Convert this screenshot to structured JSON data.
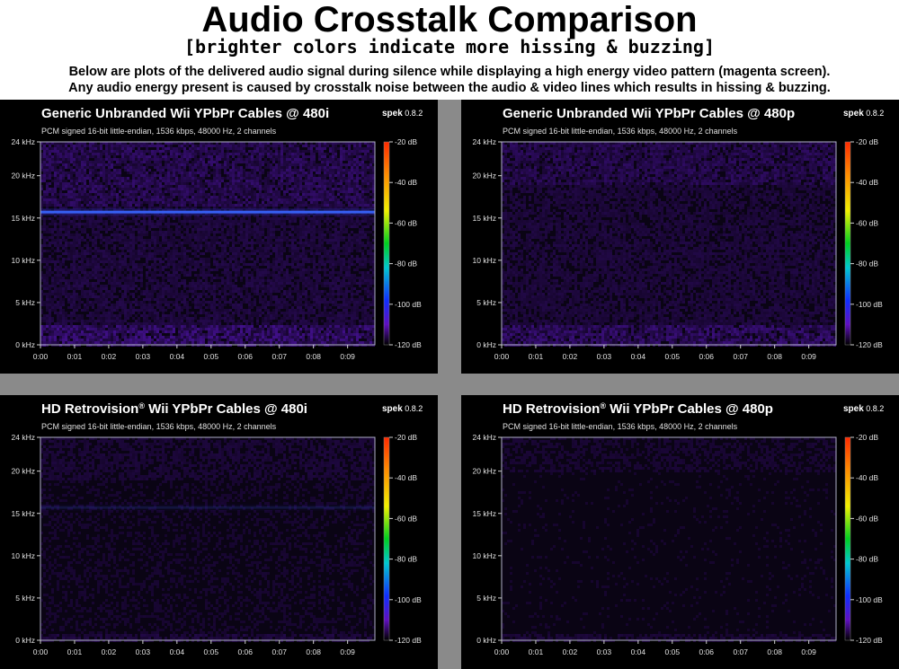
{
  "header": {
    "title": "Audio Crosstalk Comparison",
    "subtitle": "[brighter colors indicate more hissing & buzzing]",
    "description_lines": [
      "Below are plots of the delivered audio signal during silence while displaying a high energy video pattern (magenta screen).",
      "Any audio energy present is caused by crosstalk noise between the audio & video lines which results in hissing & buzzing."
    ]
  },
  "colors": {
    "page_background": "#8a8a8a",
    "header_background": "#ffffff",
    "panel_background": "#000000",
    "plot_border": "#b0b0c8",
    "noise_base": "#1e0a3a",
    "noise_bright": "#4a1a8a",
    "hum_line": "#3a6bff"
  },
  "chart_data": [
    {
      "type": "heatmap",
      "title": "Generic Unbranded Wii YPbPr Cables @ 480i",
      "title_suffix": "",
      "app": "spek",
      "app_version": "0.8.2",
      "file_info": "PCM signed 16-bit little-endian, 1536 kbps, 48000 Hz, 2 channels",
      "y_ticks": [
        "24 kHz",
        "20 kHz",
        "15 kHz",
        "10 kHz",
        "5 kHz",
        "0 kHz"
      ],
      "y_values_khz": [
        24,
        20,
        15,
        10,
        5,
        0
      ],
      "x_ticks": [
        "0:00",
        "0:01",
        "0:02",
        "0:03",
        "0:04",
        "0:05",
        "0:06",
        "0:07",
        "0:08",
        "0:09"
      ],
      "x_values_s": [
        0,
        1,
        2,
        3,
        4,
        5,
        6,
        7,
        8,
        9
      ],
      "xlim_s": [
        0,
        9.8
      ],
      "ylim_khz": [
        0,
        24
      ],
      "colorbar_ticks": [
        "-20 dB",
        "-40 dB",
        "-60 dB",
        "-80 dB",
        "-100 dB",
        "-120 dB"
      ],
      "colorbar_values_db": [
        -20,
        -40,
        -60,
        -80,
        -100,
        -120
      ],
      "noise_intensity": 1.0,
      "upper_band_khz": [
        16.5,
        24
      ],
      "hum_line_khz": 15.7,
      "hum_line_strength": 1.0,
      "low_band_khz": [
        0,
        2.5
      ]
    },
    {
      "type": "heatmap",
      "title": "Generic Unbranded Wii YPbPr Cables @ 480p",
      "title_suffix": "",
      "app": "spek",
      "app_version": "0.8.2",
      "file_info": "PCM signed 16-bit little-endian, 1536 kbps, 48000 Hz, 2 channels",
      "y_ticks": [
        "24 kHz",
        "20 kHz",
        "15 kHz",
        "10 kHz",
        "5 kHz",
        "0 kHz"
      ],
      "y_values_khz": [
        24,
        20,
        15,
        10,
        5,
        0
      ],
      "x_ticks": [
        "0:00",
        "0:01",
        "0:02",
        "0:03",
        "0:04",
        "0:05",
        "0:06",
        "0:07",
        "0:08",
        "0:09"
      ],
      "x_values_s": [
        0,
        1,
        2,
        3,
        4,
        5,
        6,
        7,
        8,
        9
      ],
      "xlim_s": [
        0,
        9.8
      ],
      "ylim_khz": [
        0,
        24
      ],
      "colorbar_ticks": [
        "-20 dB",
        "-40 dB",
        "-60 dB",
        "-80 dB",
        "-100 dB",
        "-120 dB"
      ],
      "colorbar_values_db": [
        -20,
        -40,
        -60,
        -80,
        -100,
        -120
      ],
      "noise_intensity": 0.85,
      "upper_band_khz": [
        19,
        24
      ],
      "hum_line_khz": null,
      "hum_line_strength": 0,
      "low_band_khz": [
        0,
        2.5
      ]
    },
    {
      "type": "heatmap",
      "title": "HD Retrovision",
      "title_suffix": " Wii YPbPr Cables @ 480i",
      "app": "spek",
      "app_version": "0.8.2",
      "file_info": "PCM signed 16-bit little-endian, 1536 kbps, 48000 Hz, 2 channels",
      "y_ticks": [
        "24 kHz",
        "20 kHz",
        "15 kHz",
        "10 kHz",
        "5 kHz",
        "0 kHz"
      ],
      "y_values_khz": [
        24,
        20,
        15,
        10,
        5,
        0
      ],
      "x_ticks": [
        "0:00",
        "0:01",
        "0:02",
        "0:03",
        "0:04",
        "0:05",
        "0:06",
        "0:07",
        "0:08",
        "0:09"
      ],
      "x_values_s": [
        0,
        1,
        2,
        3,
        4,
        5,
        6,
        7,
        8,
        9
      ],
      "xlim_s": [
        0,
        9.8
      ],
      "ylim_khz": [
        0,
        24
      ],
      "colorbar_ticks": [
        "-20 dB",
        "-40 dB",
        "-60 dB",
        "-80 dB",
        "-100 dB",
        "-120 dB"
      ],
      "colorbar_values_db": [
        -20,
        -40,
        -60,
        -80,
        -100,
        -120
      ],
      "noise_intensity": 0.35,
      "upper_band_khz": [
        19,
        24
      ],
      "hum_line_khz": 15.7,
      "hum_line_strength": 0.15,
      "low_band_khz": [
        0,
        1
      ]
    },
    {
      "type": "heatmap",
      "title": "HD Retrovision",
      "title_suffix": " Wii YPbPr Cables @ 480p",
      "app": "spek",
      "app_version": "0.8.2",
      "file_info": "PCM signed 16-bit little-endian, 1536 kbps, 48000 Hz, 2 channels",
      "y_ticks": [
        "24 kHz",
        "20 kHz",
        "15 kHz",
        "10 kHz",
        "5 kHz",
        "0 kHz"
      ],
      "y_values_khz": [
        24,
        20,
        15,
        10,
        5,
        0
      ],
      "x_ticks": [
        "0:00",
        "0:01",
        "0:02",
        "0:03",
        "0:04",
        "0:05",
        "0:06",
        "0:07",
        "0:08",
        "0:09"
      ],
      "x_values_s": [
        0,
        1,
        2,
        3,
        4,
        5,
        6,
        7,
        8,
        9
      ],
      "xlim_s": [
        0,
        9.8
      ],
      "ylim_khz": [
        0,
        24
      ],
      "colorbar_ticks": [
        "-20 dB",
        "-40 dB",
        "-60 dB",
        "-80 dB",
        "-100 dB",
        "-120 dB"
      ],
      "colorbar_values_db": [
        -20,
        -40,
        -60,
        -80,
        -100,
        -120
      ],
      "noise_intensity": 0.25,
      "upper_band_khz": [
        20,
        24
      ],
      "hum_line_khz": null,
      "hum_line_strength": 0,
      "low_band_khz": [
        0,
        0.8
      ]
    }
  ]
}
